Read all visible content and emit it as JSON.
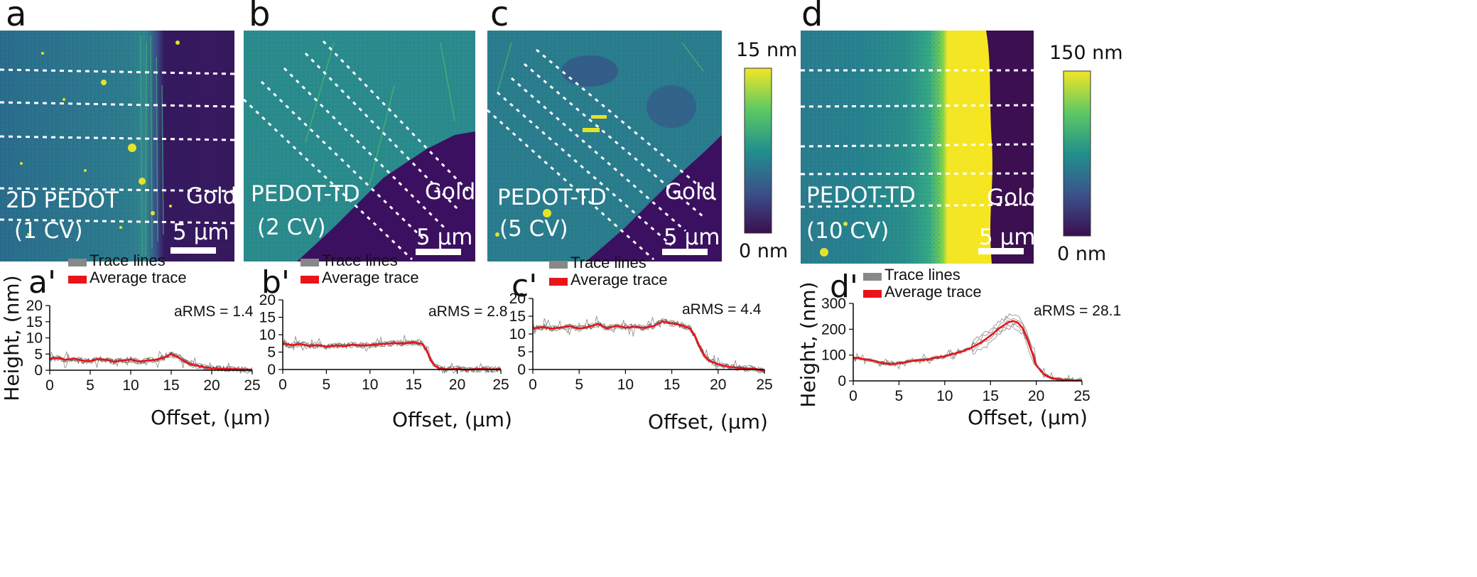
{
  "figure": {
    "panels": [
      {
        "label": "a",
        "region_left": "2D PEDOT",
        "region_left_2": "(1 CV)",
        "region_right": "Gold",
        "scalebar": "5 µm",
        "lines": "horizontal"
      },
      {
        "label": "b",
        "region_left": "PEDOT-TD",
        "region_left_2": "(2 CV)",
        "region_right": "Gold",
        "scalebar": "5 µm",
        "lines": "diagonal"
      },
      {
        "label": "c",
        "region_left": "PEDOT-TD",
        "region_left_2": "(5 CV)",
        "region_right": "Gold",
        "scalebar": "5 µm",
        "lines": "diagonal"
      },
      {
        "label": "d",
        "region_left": "PEDOT-TD",
        "region_left_2": "(10 CV)",
        "region_right": "Gold",
        "scalebar": "5 µm",
        "lines": "horizontal"
      }
    ],
    "colorbars": [
      {
        "name": "colorbar-15nm",
        "max_label": "15 nm",
        "min_label": "0 nm"
      },
      {
        "name": "colorbar-150nm",
        "max_label": "150 nm",
        "min_label": "0 nm"
      }
    ],
    "colors": {
      "trace_gray": "#888888",
      "average_red": "#e8141a",
      "cb_top": "#f2e626",
      "cb_mid": "#21908c",
      "cb_bottom": "#3b0f50"
    }
  },
  "chart_data": [
    {
      "type": "line",
      "panel": "a'",
      "legend": [
        "Trace lines",
        "Average trace"
      ],
      "ylabel": "Height, (nm)",
      "xlabel": "Offset, (µm)",
      "annotation": "aRMS = 1.4",
      "xlim": [
        0,
        25
      ],
      "ylim": [
        0,
        20
      ],
      "xticks": [
        0,
        5,
        10,
        15,
        20,
        25
      ],
      "yticks": [
        0,
        5,
        10,
        15,
        20
      ],
      "series": [
        {
          "name": "Average trace",
          "x": [
            0,
            1,
            2,
            3,
            4,
            5,
            6,
            7,
            8,
            9,
            10,
            11,
            12,
            13,
            14,
            15,
            16,
            17,
            18,
            19,
            20,
            21,
            22,
            23,
            24,
            25
          ],
          "values": [
            3.5,
            3.8,
            3.2,
            3.6,
            3.0,
            2.8,
            3.5,
            3.2,
            2.6,
            3.0,
            3.3,
            2.7,
            3.0,
            3.2,
            3.8,
            5.0,
            3.8,
            2.2,
            1.5,
            1.0,
            0.6,
            0.5,
            0.4,
            0.3,
            0.2,
            0.2
          ]
        }
      ]
    },
    {
      "type": "line",
      "panel": "b'",
      "legend": [
        "Trace lines",
        "Average trace"
      ],
      "ylabel": "",
      "xlabel": "Offset, (µm)",
      "annotation": "aRMS = 2.8",
      "xlim": [
        0,
        25
      ],
      "ylim": [
        0,
        20
      ],
      "xticks": [
        0,
        5,
        10,
        15,
        20,
        25
      ],
      "yticks": [
        0,
        5,
        10,
        15,
        20
      ],
      "series": [
        {
          "name": "Average trace",
          "x": [
            0,
            1,
            2,
            3,
            4,
            5,
            6,
            7,
            8,
            9,
            10,
            11,
            12,
            13,
            14,
            15,
            16,
            16.5,
            17,
            17.5,
            18,
            19,
            20,
            21,
            22,
            23,
            24,
            25
          ],
          "values": [
            7.5,
            7.0,
            7.3,
            6.8,
            7.0,
            6.6,
            6.9,
            6.7,
            7.1,
            6.9,
            7.0,
            7.3,
            7.4,
            7.6,
            7.5,
            7.8,
            7.3,
            5.5,
            2.5,
            1.0,
            0.3,
            0.0,
            0.2,
            -0.1,
            0.1,
            0.2,
            0.0,
            0.1
          ]
        }
      ]
    },
    {
      "type": "line",
      "panel": "c'",
      "legend": [
        "Trace lines",
        "Average trace"
      ],
      "ylabel": "",
      "xlabel": "Offset, (µm)",
      "annotation": "aRMS = 4.4",
      "xlim": [
        0,
        25
      ],
      "ylim": [
        0,
        20
      ],
      "xticks": [
        0,
        5,
        10,
        15,
        20,
        25
      ],
      "yticks": [
        0,
        5,
        10,
        15,
        20
      ],
      "series": [
        {
          "name": "Average trace",
          "x": [
            0,
            1,
            2,
            3,
            4,
            5,
            6,
            7,
            8,
            9,
            10,
            11,
            12,
            13,
            14,
            15,
            16,
            17,
            17.5,
            18,
            18.5,
            19,
            20,
            21,
            22,
            23,
            24,
            25
          ],
          "values": [
            11.5,
            12.0,
            11.5,
            11.8,
            12.2,
            11.5,
            12.0,
            12.8,
            11.6,
            12.3,
            11.8,
            12.0,
            11.7,
            12.2,
            13.5,
            13.0,
            12.5,
            11.5,
            9.5,
            6.5,
            4.0,
            2.5,
            1.5,
            0.8,
            0.5,
            0.3,
            0.2,
            -0.5
          ]
        }
      ]
    },
    {
      "type": "line",
      "panel": "d'",
      "legend": [
        "Trace lines",
        "Average trace"
      ],
      "ylabel": "Height, (nm)",
      "xlabel": "Offset, (µm)",
      "annotation": "aRMS = 28.1",
      "xlim": [
        0,
        25
      ],
      "ylim": [
        0,
        300
      ],
      "xticks": [
        0,
        5,
        10,
        15,
        20,
        25
      ],
      "yticks": [
        0,
        100,
        200,
        300
      ],
      "series": [
        {
          "name": "Average trace",
          "x": [
            0,
            1,
            2,
            3,
            4,
            5,
            6,
            7,
            8,
            9,
            10,
            11,
            12,
            13,
            14,
            15,
            16,
            17,
            17.5,
            18,
            18.5,
            19,
            19.5,
            20,
            21,
            22,
            23,
            24,
            25
          ],
          "values": [
            90,
            85,
            80,
            70,
            65,
            68,
            75,
            80,
            82,
            90,
            95,
            105,
            115,
            130,
            150,
            175,
            205,
            228,
            232,
            225,
            205,
            165,
            115,
            60,
            20,
            8,
            4,
            2,
            2
          ]
        }
      ]
    }
  ]
}
